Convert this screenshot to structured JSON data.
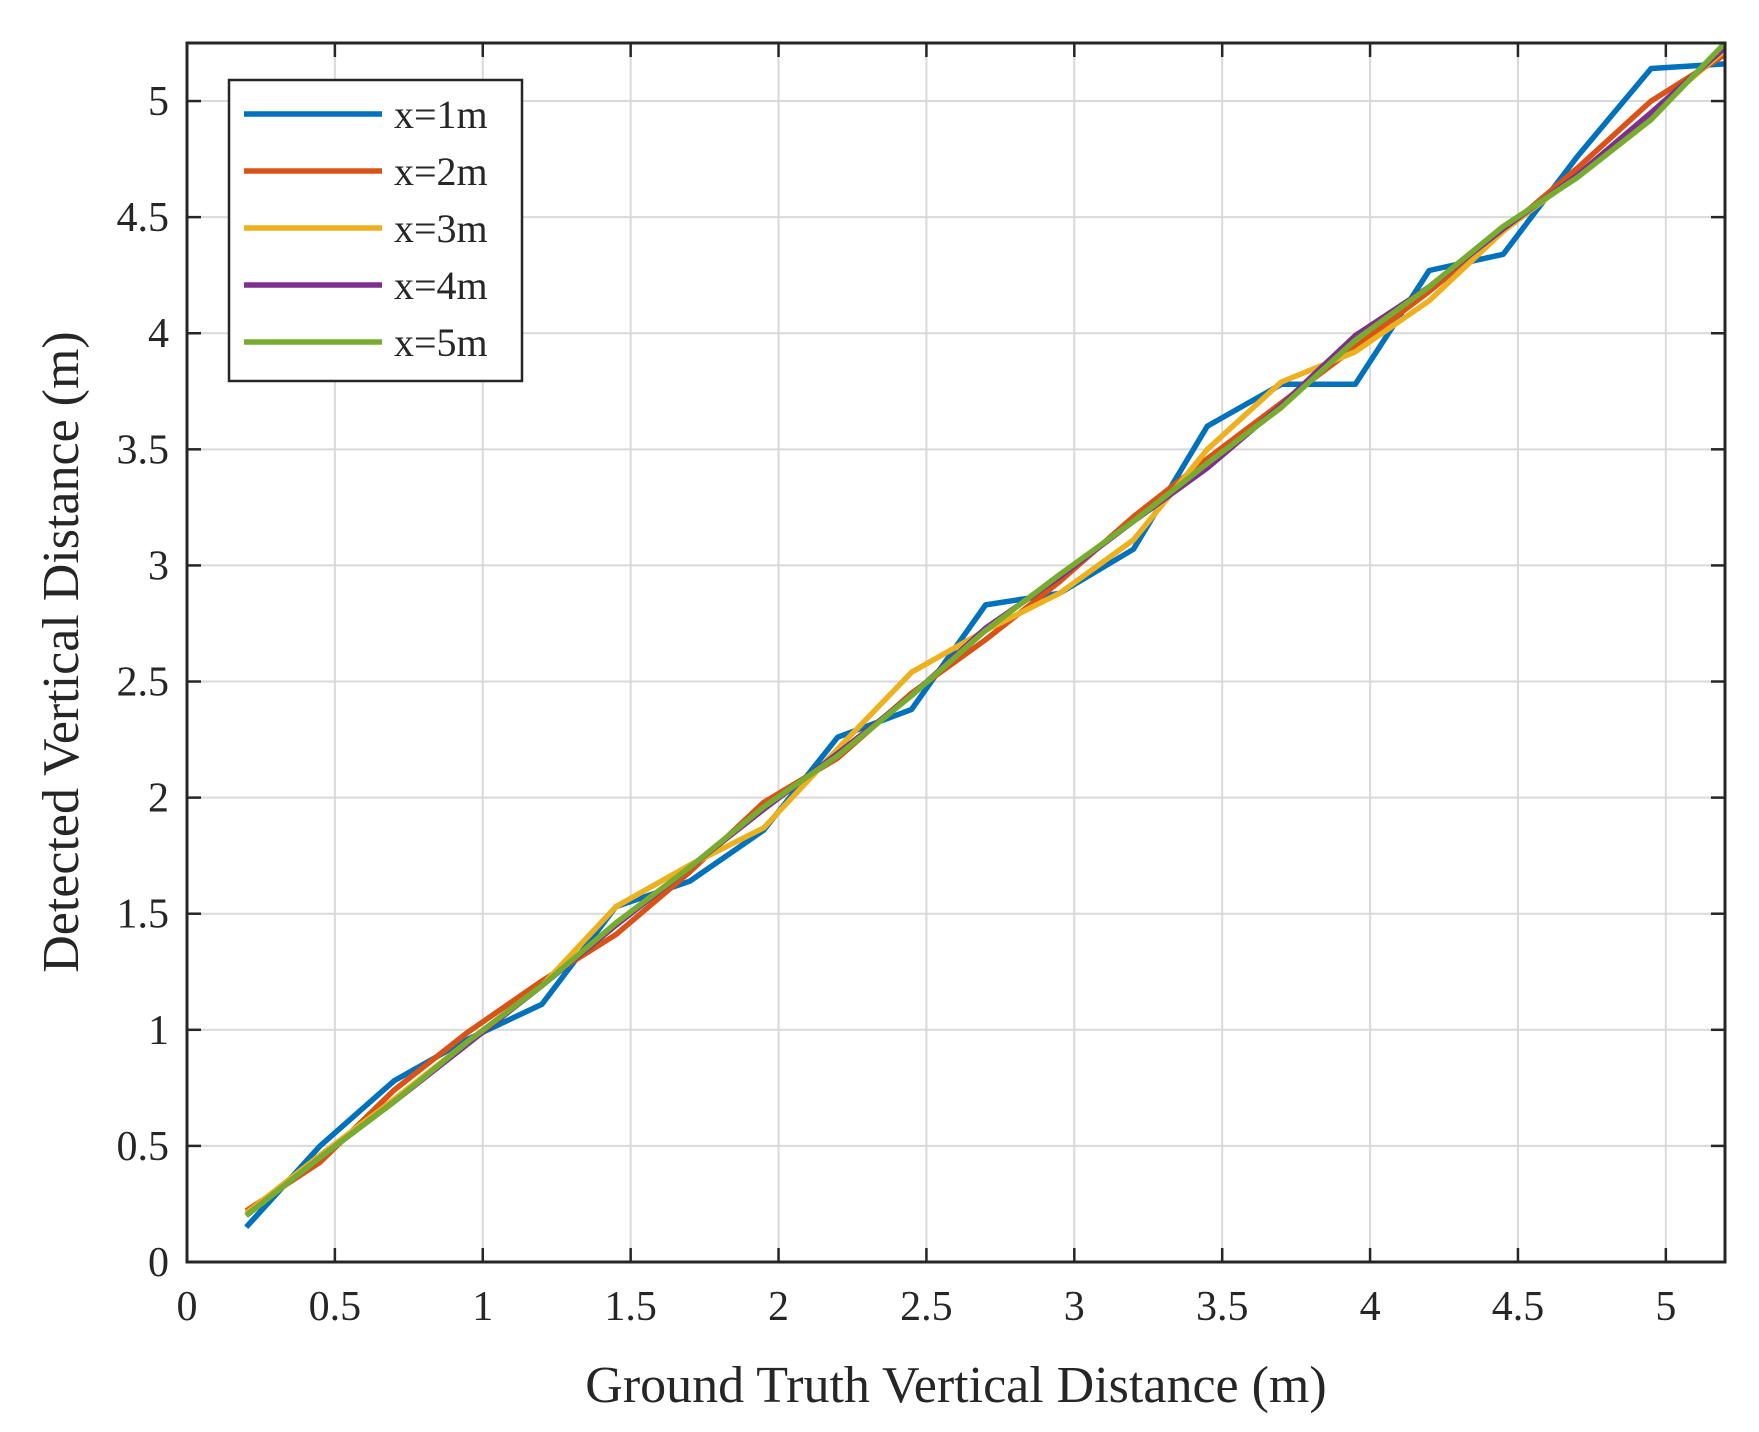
{
  "chart_data": {
    "type": "line",
    "title": "",
    "xlabel": "Ground Truth Vertical Distance (m)",
    "ylabel": "Detected Vertical Distance (m)",
    "xlim": [
      0,
      5.2
    ],
    "ylim": [
      0,
      5.25
    ],
    "grid": true,
    "legend_position": "top-left",
    "x_ticks": [
      0,
      0.5,
      1,
      1.5,
      2,
      2.5,
      3,
      3.5,
      4,
      4.5,
      5
    ],
    "x_tick_labels": [
      "0",
      "0.5",
      "1",
      "1.5",
      "2",
      "2.5",
      "3",
      "3.5",
      "4",
      "4.5",
      "5"
    ],
    "y_ticks": [
      0,
      0.5,
      1,
      1.5,
      2,
      2.5,
      3,
      3.5,
      4,
      4.5,
      5
    ],
    "y_tick_labels": [
      "0",
      "0.5",
      "1",
      "1.5",
      "2",
      "2.5",
      "3",
      "3.5",
      "4",
      "4.5",
      "5"
    ],
    "x": [
      0.2,
      0.45,
      0.7,
      0.95,
      1.2,
      1.45,
      1.7,
      1.95,
      2.2,
      2.45,
      2.7,
      2.95,
      3.2,
      3.45,
      3.7,
      3.95,
      4.2,
      4.45,
      4.7,
      4.95,
      5.2
    ],
    "series": [
      {
        "name": "x=1m",
        "color": "#0072BD",
        "values": [
          0.15,
          0.5,
          0.78,
          0.96,
          1.11,
          1.53,
          1.64,
          1.86,
          2.26,
          2.38,
          2.83,
          2.88,
          3.07,
          3.6,
          3.78,
          3.78,
          4.27,
          4.34,
          4.76,
          5.14,
          5.16
        ]
      },
      {
        "name": "x=2m",
        "color": "#D95319",
        "values": [
          0.22,
          0.43,
          0.74,
          0.99,
          1.21,
          1.41,
          1.68,
          1.98,
          2.17,
          2.45,
          2.68,
          2.93,
          3.21,
          3.46,
          3.7,
          3.94,
          4.18,
          4.44,
          4.71,
          5.0,
          5.2
        ]
      },
      {
        "name": "x=3m",
        "color": "#EDB120",
        "values": [
          0.21,
          0.46,
          0.7,
          0.95,
          1.19,
          1.53,
          1.71,
          1.87,
          2.21,
          2.54,
          2.72,
          2.88,
          3.11,
          3.5,
          3.79,
          3.92,
          4.14,
          4.44,
          4.68,
          4.95,
          5.22
        ]
      },
      {
        "name": "x=4m",
        "color": "#7E2F8E",
        "values": [
          0.2,
          0.45,
          0.69,
          0.94,
          1.19,
          1.45,
          1.7,
          1.95,
          2.19,
          2.44,
          2.73,
          2.95,
          3.19,
          3.42,
          3.69,
          3.99,
          4.2,
          4.45,
          4.68,
          4.95,
          5.23
        ]
      },
      {
        "name": "x=5m",
        "color": "#77AC30",
        "values": [
          0.2,
          0.45,
          0.69,
          0.95,
          1.19,
          1.46,
          1.7,
          1.96,
          2.18,
          2.44,
          2.72,
          2.96,
          3.19,
          3.44,
          3.68,
          3.97,
          4.2,
          4.46,
          4.67,
          4.92,
          5.25
        ]
      }
    ]
  }
}
